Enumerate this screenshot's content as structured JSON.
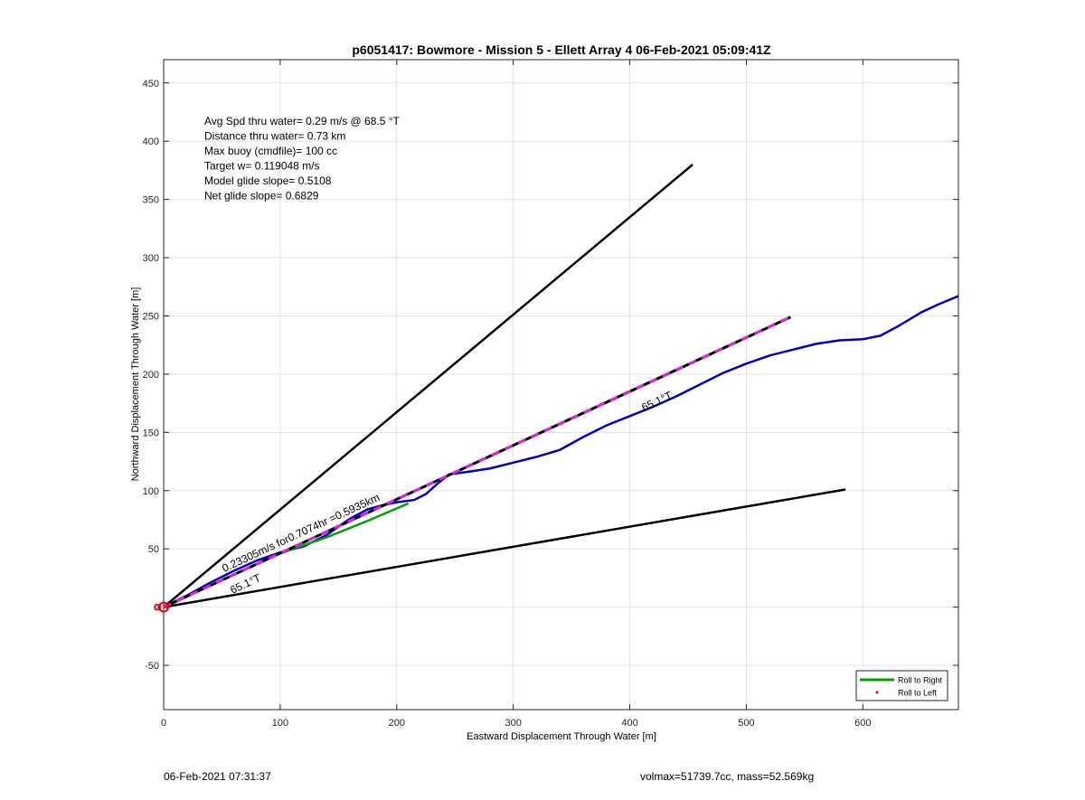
{
  "chart_data": {
    "type": "line",
    "title": "p6051417: Bowmore - Mission 5 - Ellett Array 4 06-Feb-2021 05:09:41Z",
    "xlabel": "Eastward Displacement Through Water [m]",
    "ylabel": "Northward Displacement Through Water [m]",
    "xlim": [
      0,
      682
    ],
    "ylim": [
      -88,
      470
    ],
    "xticks": [
      0,
      100,
      200,
      300,
      400,
      500,
      600
    ],
    "yticks": [
      -50,
      0,
      50,
      100,
      150,
      200,
      250,
      300,
      350,
      400,
      450
    ],
    "grid": true,
    "legend_position": "bottom-right",
    "legend": [
      {
        "label": "Roll to Right",
        "color": "#00a000",
        "style": "line"
      },
      {
        "label": "Roll to Left",
        "color": "#ff0000",
        "style": "dot"
      }
    ],
    "info_lines": [
      "Avg Spd thru water=  0.29 m/s @  68.5 °T",
      "Distance thru water=  0.73 km",
      "Max buoy (cmdfile)= 100 cc",
      "Target w= 0.119048 m/s",
      "Model glide slope= 0.5108",
      "Net glide slope= 0.6829"
    ],
    "annotations": {
      "current_text": "0.23305m/s for0.7074hr =0.5935km",
      "heading_near": "65.1°T",
      "heading_far": "65.1°T"
    },
    "series": [
      {
        "role": "upper-bound",
        "color": "#000000",
        "x": [
          0,
          454
        ],
        "y": [
          0,
          380
        ]
      },
      {
        "role": "lower-bound",
        "color": "#000000",
        "x": [
          0,
          585
        ],
        "y": [
          0,
          101
        ]
      },
      {
        "role": "heading",
        "color": "#000000",
        "dash_color": "#e020e0",
        "x": [
          0,
          538
        ],
        "y": [
          0,
          249
        ]
      },
      {
        "role": "track",
        "color": "#0000c0",
        "x": [
          0,
          20,
          40,
          60,
          80,
          100,
          120,
          140,
          160,
          175,
          190,
          200,
          215,
          225,
          235,
          245,
          260,
          280,
          300,
          320,
          340,
          360,
          380,
          400,
          420,
          440,
          460,
          480,
          500,
          520,
          540,
          560,
          580,
          600,
          615,
          630,
          650,
          665,
          682
        ],
        "y": [
          0,
          10,
          21,
          31,
          40,
          47,
          52,
          62,
          76,
          84,
          88,
          90,
          92,
          97,
          106,
          114,
          116,
          119,
          124,
          129,
          135,
          146,
          156,
          164,
          172,
          181,
          191,
          201,
          209,
          216,
          221,
          226,
          229,
          230,
          233,
          241,
          253,
          260,
          267
        ]
      },
      {
        "role": "roll-to-right",
        "color": "#00a000",
        "x": [
          100,
          140,
          175,
          210
        ],
        "y": [
          46,
          60,
          74,
          89
        ]
      }
    ]
  },
  "footer": {
    "timestamp": "06-Feb-2021 07:31:37",
    "vessel_info": "volmax=51739.7cc, mass=52.569kg"
  }
}
